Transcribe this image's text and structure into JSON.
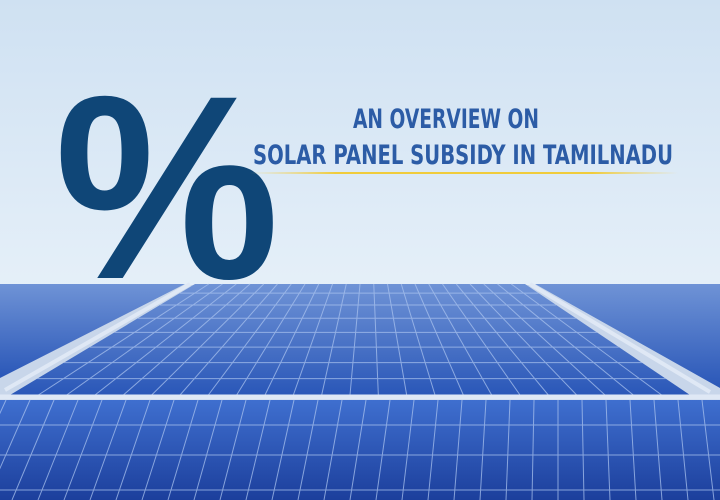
{
  "banner": {
    "symbol": "%",
    "title_line_1": "AN OVERVIEW ON",
    "title_line_2": "SOLAR PANEL SUBSIDY IN TAMILNADU"
  }
}
